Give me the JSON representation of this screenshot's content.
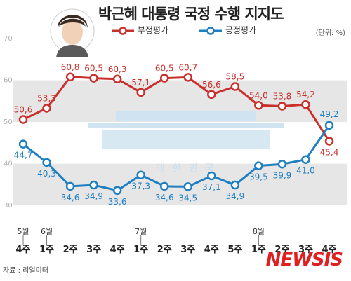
{
  "header": {
    "title": "박근혜 대통령 국정 수행 지지도",
    "unit": "(단위: %)"
  },
  "footer": {
    "source": "자료 : 리얼미터",
    "brand": "NEWSIS"
  },
  "watermark": {
    "text": "대 한 민 국"
  },
  "colors": {
    "negative": "#c9302c",
    "positive": "#1f7fc1",
    "band": "#e6e6e6",
    "tick": "#b0b0b0"
  },
  "chart_data": {
    "type": "line",
    "title": "박근혜 대통령 국정 수행 지지도",
    "unit": "(단위: %)",
    "ylim": [
      25,
      70
    ],
    "yticks": [
      30,
      40,
      50,
      60,
      70
    ],
    "categories": [
      {
        "week": "4주",
        "month": "5월"
      },
      {
        "week": "1주",
        "month": "6월"
      },
      {
        "week": "2주",
        "month": ""
      },
      {
        "week": "3주",
        "month": ""
      },
      {
        "week": "4주",
        "month": ""
      },
      {
        "week": "1주",
        "month": "7월"
      },
      {
        "week": "2주",
        "month": ""
      },
      {
        "week": "3주",
        "month": ""
      },
      {
        "week": "4주",
        "month": ""
      },
      {
        "week": "5주",
        "month": ""
      },
      {
        "week": "1주",
        "month": "8월"
      },
      {
        "week": "2주",
        "month": ""
      },
      {
        "week": "3주",
        "month": ""
      },
      {
        "week": "4주",
        "month": ""
      }
    ],
    "series": [
      {
        "name": "부정평가",
        "key": "negative",
        "values": [
          50.6,
          53.3,
          60.8,
          60.5,
          60.3,
          57.1,
          60.5,
          60.7,
          56.6,
          58.5,
          54.0,
          53.8,
          54.2,
          45.4
        ],
        "labels": [
          "50,6",
          "53,3",
          "60,8",
          "60,5",
          "60,3",
          "57,1",
          "60,5",
          "60,7",
          "56,6",
          "58,5",
          "54,0",
          "53,8",
          "54,2",
          "45,4"
        ]
      },
      {
        "name": "긍정평가",
        "key": "positive",
        "values": [
          44.7,
          40.3,
          34.6,
          34.9,
          33.6,
          37.3,
          34.6,
          34.5,
          37.1,
          34.9,
          39.5,
          39.9,
          41.0,
          49.2
        ],
        "labels": [
          "44,7",
          "40,3",
          "34,6",
          "34,9",
          "33,6",
          "37,3",
          "34,6",
          "34,5",
          "37,1",
          "34,9",
          "39,5",
          "39,9",
          "41,0",
          "49,2"
        ]
      }
    ],
    "grid": "alternating bands",
    "legend": "top"
  }
}
